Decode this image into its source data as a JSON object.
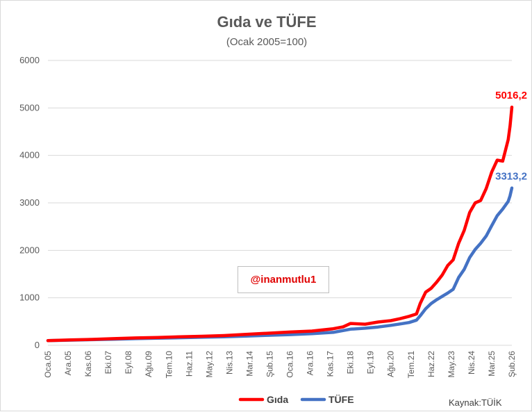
{
  "colors": {
    "gida": "#ff0000",
    "tufe": "#4472c4",
    "grid": "#d9d9d9",
    "text": "#595959"
  },
  "watermark": "@inanmutlu1",
  "source": "Kaynak:TÜİK",
  "chart_data": {
    "type": "line",
    "title": "Gıda ve TÜFE",
    "subtitle": "(Ocak 2005=100)",
    "ylim": [
      0,
      6000
    ],
    "yticks": [
      0,
      1000,
      2000,
      3000,
      4000,
      5000,
      6000
    ],
    "xlim": [
      "2005-01",
      "2026-02"
    ],
    "x_ticks": [
      "Oca.05",
      "Ara.05",
      "Kas.06",
      "Eki.07",
      "Eyl.08",
      "Ağu.09",
      "Tem.10",
      "Haz.11",
      "May.12",
      "Nis.13",
      "Mar.14",
      "Şub.15",
      "Oca.16",
      "Ara.16",
      "Kas.17",
      "Eki.18",
      "Eyl.19",
      "Ağu.20",
      "Tem.21",
      "Haz.22",
      "May.23",
      "Nis.24",
      "Mar.25",
      "Şub.26"
    ],
    "grid": true,
    "legend_position": "bottom",
    "series": [
      {
        "name": "Gıda",
        "color": "#ff0000",
        "end_label": "5016,2",
        "points": [
          [
            "2005-01",
            100
          ],
          [
            "2006-01",
            112
          ],
          [
            "2007-01",
            125
          ],
          [
            "2008-01",
            140
          ],
          [
            "2009-01",
            155
          ],
          [
            "2010-01",
            165
          ],
          [
            "2011-01",
            180
          ],
          [
            "2012-01",
            190
          ],
          [
            "2013-01",
            205
          ],
          [
            "2014-01",
            230
          ],
          [
            "2015-01",
            255
          ],
          [
            "2016-01",
            280
          ],
          [
            "2017-01",
            300
          ],
          [
            "2017-12",
            345
          ],
          [
            "2018-06",
            390
          ],
          [
            "2018-10",
            460
          ],
          [
            "2019-06",
            445
          ],
          [
            "2020-01",
            490
          ],
          [
            "2020-08",
            520
          ],
          [
            "2021-01",
            560
          ],
          [
            "2021-06",
            610
          ],
          [
            "2021-10",
            660
          ],
          [
            "2021-12",
            880
          ],
          [
            "2022-03",
            1120
          ],
          [
            "2022-06",
            1200
          ],
          [
            "2022-09",
            1330
          ],
          [
            "2022-12",
            1480
          ],
          [
            "2023-03",
            1680
          ],
          [
            "2023-06",
            1800
          ],
          [
            "2023-09",
            2150
          ],
          [
            "2023-12",
            2420
          ],
          [
            "2024-03",
            2800
          ],
          [
            "2024-06",
            3000
          ],
          [
            "2024-09",
            3050
          ],
          [
            "2024-12",
            3300
          ],
          [
            "2025-03",
            3650
          ],
          [
            "2025-06",
            3900
          ],
          [
            "2025-09",
            3880
          ],
          [
            "2025-12",
            4330
          ],
          [
            "2026-01",
            4620
          ],
          [
            "2026-02",
            5016.2
          ]
        ]
      },
      {
        "name": "TÜFE",
        "color": "#4472c4",
        "end_label": "3313,2",
        "points": [
          [
            "2005-01",
            100
          ],
          [
            "2006-01",
            108
          ],
          [
            "2007-01",
            118
          ],
          [
            "2008-01",
            128
          ],
          [
            "2009-01",
            140
          ],
          [
            "2010-01",
            150
          ],
          [
            "2011-01",
            160
          ],
          [
            "2012-01",
            170
          ],
          [
            "2013-01",
            180
          ],
          [
            "2014-01",
            195
          ],
          [
            "2015-01",
            210
          ],
          [
            "2016-01",
            225
          ],
          [
            "2017-01",
            245
          ],
          [
            "2018-01",
            275
          ],
          [
            "2018-10",
            340
          ],
          [
            "2019-06",
            360
          ],
          [
            "2020-01",
            385
          ],
          [
            "2020-08",
            420
          ],
          [
            "2021-01",
            450
          ],
          [
            "2021-06",
            480
          ],
          [
            "2021-10",
            530
          ],
          [
            "2021-12",
            620
          ],
          [
            "2022-03",
            770
          ],
          [
            "2022-06",
            880
          ],
          [
            "2022-09",
            960
          ],
          [
            "2022-12",
            1030
          ],
          [
            "2023-03",
            1100
          ],
          [
            "2023-06",
            1180
          ],
          [
            "2023-09",
            1430
          ],
          [
            "2023-12",
            1600
          ],
          [
            "2024-03",
            1850
          ],
          [
            "2024-06",
            2020
          ],
          [
            "2024-09",
            2150
          ],
          [
            "2024-12",
            2300
          ],
          [
            "2025-03",
            2520
          ],
          [
            "2025-06",
            2730
          ],
          [
            "2025-09",
            2870
          ],
          [
            "2025-12",
            3030
          ],
          [
            "2026-01",
            3150
          ],
          [
            "2026-02",
            3313.2
          ]
        ]
      }
    ]
  }
}
